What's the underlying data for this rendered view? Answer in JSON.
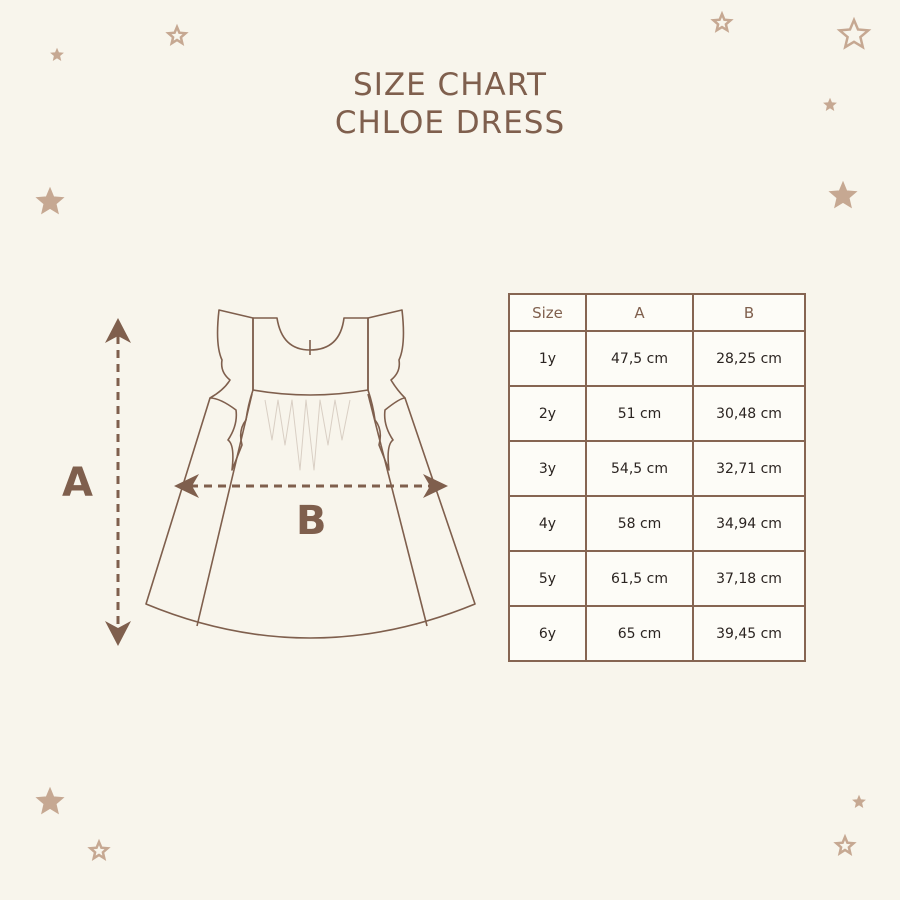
{
  "title": {
    "line1": "SIZE CHART",
    "line2": "CHLOE DRESS"
  },
  "diagram": {
    "label_a": "A",
    "label_b": "B"
  },
  "colors": {
    "background": "#f8f5ec",
    "brown": "#7f5f4d",
    "star": "#c6a892"
  },
  "table": {
    "headers": [
      "Size",
      "A",
      "B"
    ],
    "rows": [
      [
        "1y",
        "47,5 cm",
        "28,25 cm"
      ],
      [
        "2y",
        "51 cm",
        "30,48 cm"
      ],
      [
        "3y",
        "54,5 cm",
        "32,71 cm"
      ],
      [
        "4y",
        "58 cm",
        "34,94 cm"
      ],
      [
        "5y",
        "61,5 cm",
        "37,18 cm"
      ],
      [
        "6y",
        "65 cm",
        "39,45 cm"
      ]
    ]
  }
}
